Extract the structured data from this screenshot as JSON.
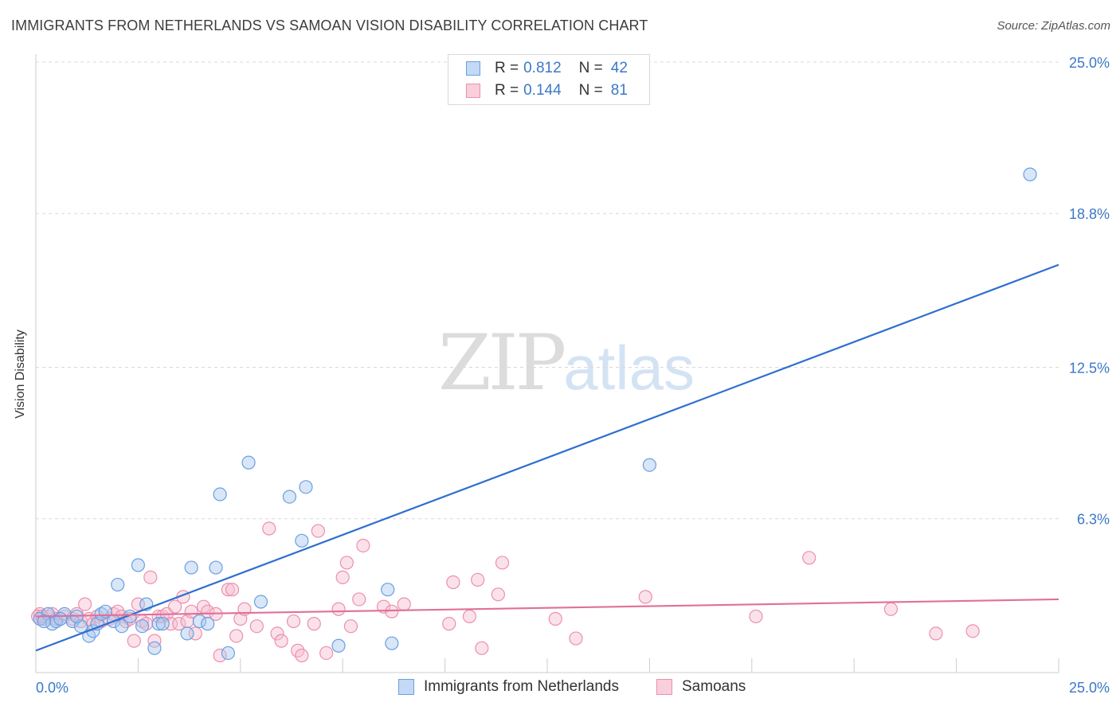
{
  "header": {
    "title": "IMMIGRANTS FROM NETHERLANDS VS SAMOAN VISION DISABILITY CORRELATION CHART",
    "source": "Source: ZipAtlas.com"
  },
  "watermark": {
    "zip": "ZIP",
    "atlas": "atlas"
  },
  "legend_top": {
    "rows": [
      {
        "r_label": "R =",
        "r_value": "0.812",
        "n_label": "N =",
        "n_value": "42",
        "color": "#9ec2ef",
        "border": "#6a9fe0"
      },
      {
        "r_label": "R =",
        "r_value": "0.144",
        "n_label": "N =",
        "n_value": "81",
        "color": "#f7bfd0",
        "border": "#ec8fad"
      }
    ]
  },
  "legend_bottom": {
    "items": [
      {
        "label": "Immigrants from Netherlands",
        "color": "#c4d9f5",
        "border": "#6a9fe0"
      },
      {
        "label": "Samoans",
        "color": "#f9cfdc",
        "border": "#ec8fad"
      }
    ]
  },
  "chart_data": {
    "type": "scatter",
    "title": "IMMIGRANTS FROM NETHERLANDS VS SAMOAN VISION DISABILITY CORRELATION CHART",
    "xlabel": "",
    "ylabel": "Vision Disability",
    "xlim": [
      0,
      25
    ],
    "ylim": [
      0,
      25
    ],
    "x_tick_labels": [
      "0.0%",
      "25.0%"
    ],
    "y_ticks": [
      6.3,
      12.5,
      18.8,
      25.0
    ],
    "y_tick_labels": [
      "6.3%",
      "12.5%",
      "18.8%",
      "25.0%"
    ],
    "grid": "horizontal dashed",
    "legend": "top-center",
    "series": [
      {
        "name": "Immigrants from Netherlands",
        "color": "#6a9fe0",
        "fill": "#a9c8f0",
        "trend": {
          "x": [
            0,
            25
          ],
          "y": [
            0.9,
            16.7
          ],
          "color": "#2f6fd0"
        },
        "points": [
          [
            0.1,
            2.2
          ],
          [
            0.3,
            2.4
          ],
          [
            0.4,
            2.0
          ],
          [
            0.5,
            2.1
          ],
          [
            0.7,
            2.4
          ],
          [
            0.9,
            2.1
          ],
          [
            1.1,
            1.9
          ],
          [
            1.3,
            1.5
          ],
          [
            1.4,
            1.7
          ],
          [
            1.5,
            2.0
          ],
          [
            1.6,
            2.4
          ],
          [
            1.7,
            2.5
          ],
          [
            1.9,
            2.1
          ],
          [
            2.0,
            3.6
          ],
          [
            2.1,
            1.9
          ],
          [
            2.3,
            2.3
          ],
          [
            2.5,
            4.4
          ],
          [
            2.6,
            1.9
          ],
          [
            2.7,
            2.8
          ],
          [
            2.9,
            1.0
          ],
          [
            3.0,
            2.0
          ],
          [
            3.1,
            2.0
          ],
          [
            3.7,
            1.6
          ],
          [
            3.8,
            4.3
          ],
          [
            4.0,
            2.1
          ],
          [
            4.2,
            2.0
          ],
          [
            4.4,
            4.3
          ],
          [
            4.5,
            7.3
          ],
          [
            4.7,
            0.8
          ],
          [
            5.2,
            8.6
          ],
          [
            5.5,
            2.9
          ],
          [
            6.2,
            7.2
          ],
          [
            6.5,
            5.4
          ],
          [
            6.6,
            7.6
          ],
          [
            7.4,
            1.1
          ],
          [
            8.6,
            3.4
          ],
          [
            8.7,
            1.2
          ],
          [
            15.0,
            8.5
          ],
          [
            24.3,
            20.4
          ],
          [
            0.2,
            2.1
          ],
          [
            0.6,
            2.2
          ],
          [
            1.0,
            2.3
          ]
        ]
      },
      {
        "name": "Samoans",
        "color": "#ec8fad",
        "fill": "#f7bfd0",
        "trend": {
          "x": [
            0,
            25
          ],
          "y": [
            2.3,
            3.0
          ],
          "color": "#e0709a"
        },
        "points": [
          [
            0.1,
            2.4
          ],
          [
            0.2,
            2.2
          ],
          [
            0.3,
            2.3
          ],
          [
            0.4,
            2.4
          ],
          [
            0.5,
            2.2
          ],
          [
            0.7,
            2.3
          ],
          [
            0.9,
            2.2
          ],
          [
            1.0,
            2.4
          ],
          [
            1.1,
            2.1
          ],
          [
            1.2,
            2.8
          ],
          [
            1.3,
            2.2
          ],
          [
            1.4,
            2.0
          ],
          [
            1.5,
            2.3
          ],
          [
            1.6,
            2.1
          ],
          [
            1.8,
            2.2
          ],
          [
            1.9,
            2.4
          ],
          [
            2.0,
            2.5
          ],
          [
            2.1,
            2.3
          ],
          [
            2.2,
            2.1
          ],
          [
            2.3,
            2.2
          ],
          [
            2.4,
            1.3
          ],
          [
            2.5,
            2.8
          ],
          [
            2.6,
            2.1
          ],
          [
            2.7,
            2.0
          ],
          [
            2.8,
            3.9
          ],
          [
            2.9,
            1.3
          ],
          [
            3.0,
            2.3
          ],
          [
            3.1,
            2.3
          ],
          [
            3.2,
            2.4
          ],
          [
            3.3,
            2.0
          ],
          [
            3.4,
            2.7
          ],
          [
            3.5,
            2.0
          ],
          [
            3.6,
            3.1
          ],
          [
            3.7,
            2.1
          ],
          [
            3.8,
            2.5
          ],
          [
            3.9,
            1.6
          ],
          [
            4.1,
            2.7
          ],
          [
            4.2,
            2.5
          ],
          [
            4.4,
            2.4
          ],
          [
            4.5,
            0.7
          ],
          [
            4.7,
            3.4
          ],
          [
            4.8,
            3.4
          ],
          [
            4.9,
            1.5
          ],
          [
            5.0,
            2.2
          ],
          [
            5.1,
            2.6
          ],
          [
            5.4,
            1.9
          ],
          [
            5.7,
            5.9
          ],
          [
            5.9,
            1.6
          ],
          [
            6.0,
            1.3
          ],
          [
            6.3,
            2.1
          ],
          [
            6.4,
            0.9
          ],
          [
            6.5,
            0.7
          ],
          [
            6.8,
            2.0
          ],
          [
            6.9,
            5.8
          ],
          [
            7.1,
            0.8
          ],
          [
            7.4,
            2.6
          ],
          [
            7.5,
            3.9
          ],
          [
            7.6,
            4.5
          ],
          [
            7.7,
            1.9
          ],
          [
            7.9,
            3.0
          ],
          [
            8.0,
            5.2
          ],
          [
            8.5,
            2.7
          ],
          [
            8.7,
            2.5
          ],
          [
            9.0,
            2.8
          ],
          [
            10.1,
            2.0
          ],
          [
            10.2,
            3.7
          ],
          [
            10.6,
            2.3
          ],
          [
            10.8,
            3.8
          ],
          [
            10.9,
            1.0
          ],
          [
            11.3,
            3.2
          ],
          [
            11.4,
            4.5
          ],
          [
            12.7,
            2.2
          ],
          [
            13.2,
            1.4
          ],
          [
            14.9,
            3.1
          ],
          [
            17.6,
            2.3
          ],
          [
            18.9,
            4.7
          ],
          [
            20.9,
            2.6
          ],
          [
            22.0,
            1.6
          ],
          [
            22.9,
            1.7
          ],
          [
            0.05,
            2.3
          ],
          [
            0.15,
            2.3
          ]
        ]
      }
    ]
  }
}
